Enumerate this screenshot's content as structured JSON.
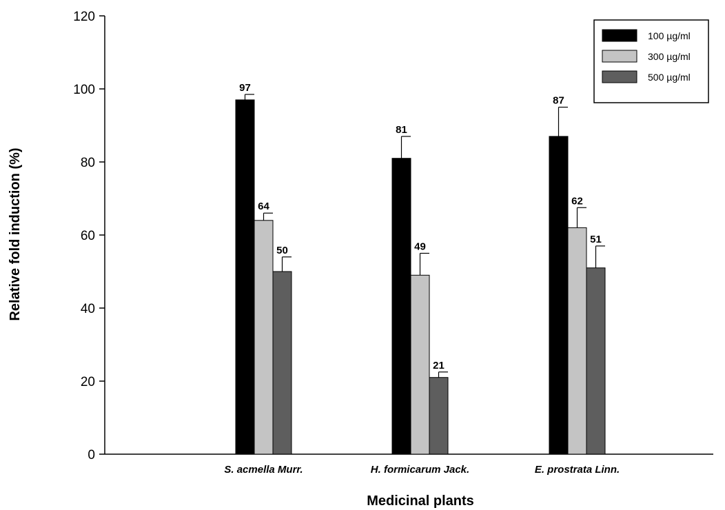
{
  "chart_data": {
    "type": "bar",
    "title": "",
    "xlabel": "Medicinal plants",
    "ylabel": "Relative fold induction (%)",
    "ylim": [
      0,
      120
    ],
    "yticks": [
      0,
      20,
      40,
      60,
      80,
      100,
      120
    ],
    "grid": false,
    "legend_position": "top-right",
    "categories": [
      "S. acmella Murr.",
      "H. formicarum Jack.",
      "E. prostrata Linn."
    ],
    "series": [
      {
        "name": "100 µg/ml",
        "color": "#000000",
        "values": [
          97,
          81,
          87
        ],
        "errors": [
          1.5,
          6,
          8
        ],
        "labels": [
          "97",
          "81",
          "87"
        ]
      },
      {
        "name": "300 µg/ml",
        "color": "#c4c4c4",
        "values": [
          64,
          49,
          62
        ],
        "errors": [
          2,
          6,
          5.5
        ],
        "labels": [
          "64",
          "49",
          "62"
        ]
      },
      {
        "name": "500 µg/ml",
        "color": "#5e5e5e",
        "values": [
          50,
          21,
          51
        ],
        "errors": [
          4,
          1.5,
          6
        ],
        "labels": [
          "50",
          "21",
          "51"
        ]
      }
    ]
  }
}
